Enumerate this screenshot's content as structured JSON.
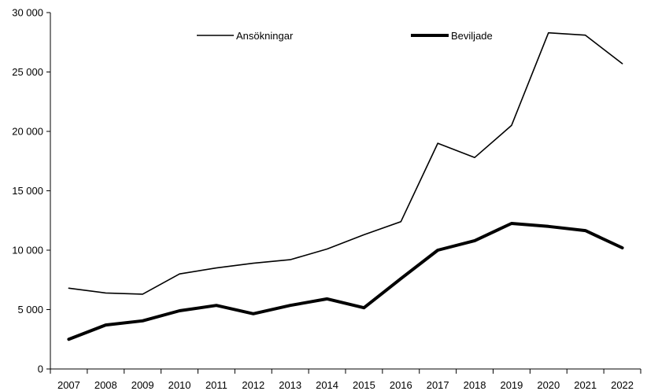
{
  "chart_data": {
    "type": "line",
    "x": [
      "2007",
      "2008",
      "2009",
      "2010",
      "2011",
      "2012",
      "2013",
      "2014",
      "2015",
      "2016",
      "2017",
      "2018",
      "2019",
      "2020",
      "2021",
      "2022"
    ],
    "series": [
      {
        "name": "Ansökningar",
        "color": "#000000",
        "line_weight": "thin",
        "values": [
          6800,
          6400,
          6300,
          8000,
          8500,
          8900,
          9200,
          10100,
          11300,
          12400,
          19000,
          17800,
          20500,
          28300,
          28100,
          25700
        ]
      },
      {
        "name": "Beviljade",
        "color": "#000000",
        "line_weight": "thick",
        "values": [
          2500,
          3700,
          4050,
          4900,
          5350,
          4650,
          5350,
          5900,
          5150,
          7600,
          10000,
          10800,
          12250,
          12000,
          11650,
          10200
        ]
      }
    ],
    "ylim": [
      0,
      30000
    ],
    "yticks": [
      0,
      5000,
      10000,
      15000,
      20000,
      25000,
      30000
    ],
    "ytick_labels": [
      "0",
      "5 000",
      "10 000",
      "15 000",
      "20 000",
      "25 000",
      "30 000"
    ],
    "grid": false,
    "legend_position": "top-center",
    "title": "",
    "xlabel": "",
    "ylabel": ""
  }
}
